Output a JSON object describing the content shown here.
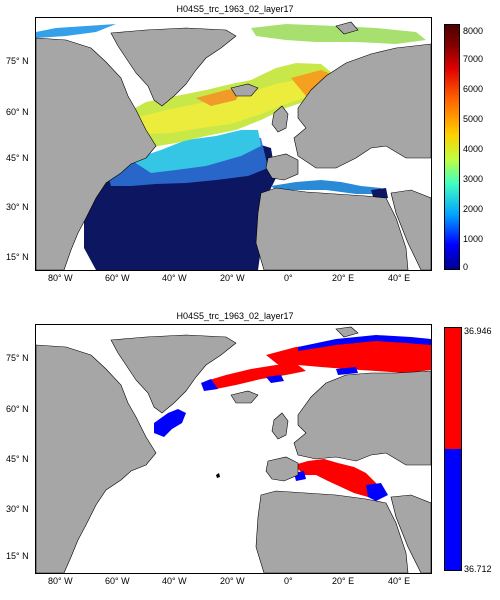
{
  "map1": {
    "title": "H04S5_trc_1963_02_layer17",
    "lat_labels": [
      "75° N",
      "60° N",
      "45° N",
      "30° N",
      "15° N"
    ],
    "lon_labels": [
      "80° W",
      "60° W",
      "40° W",
      "20° W",
      "0°",
      "20° E",
      "40° E"
    ],
    "colorbar": {
      "ticks": [
        "8000",
        "7000",
        "6000",
        "5000",
        "4000",
        "3000",
        "2000",
        "1000",
        "0"
      ],
      "min": 0,
      "max": 8000,
      "colormap": "jet"
    }
  },
  "map2": {
    "title": "H04S5_trc_1963_02_layer17",
    "lat_labels": [
      "75° N",
      "60° N",
      "45° N",
      "30° N",
      "15° N"
    ],
    "lon_labels": [
      "80° W",
      "60° W",
      "40° W",
      "20° W",
      "0°",
      "20° E",
      "40° E"
    ],
    "colorbar": {
      "top_label": "36.946",
      "bottom_label": "36.712",
      "colors": [
        "#ff0000",
        "#0000ff"
      ]
    }
  },
  "colors": {
    "land": "#a6a6a6",
    "ocean_empty": "#ffffff",
    "deep": "#0b1a5c",
    "high": "#ff0000",
    "low": "#0000ff"
  }
}
